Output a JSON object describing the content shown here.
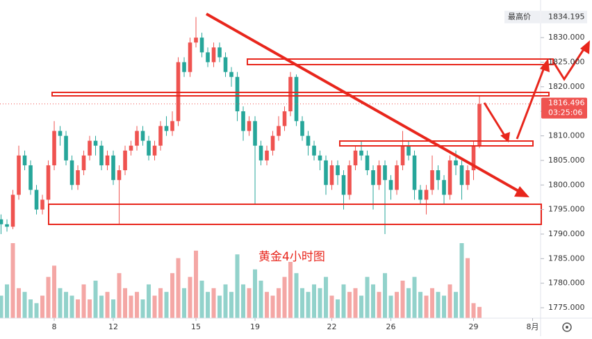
{
  "chart_data": {
    "type": "candlestick",
    "annotation": "黄金4小时图",
    "open": [
      1793,
      1792,
      1791.5,
      1798,
      1806,
      1804,
      1799,
      1795,
      1797,
      1804,
      1811,
      1810,
      1805,
      1800,
      1803,
      1806,
      1809,
      1808,
      1804,
      1806,
      1801,
      1803,
      1807,
      1808,
      1811,
      1809,
      1806,
      1808,
      1812,
      1811,
      1813,
      1825,
      1823,
      1829,
      1830,
      1827,
      1825,
      1828,
      1826,
      1823,
      1822,
      1815,
      1811,
      1813,
      1808,
      1805,
      1807,
      1810,
      1812,
      1815,
      1822,
      1813,
      1810,
      1808,
      1806,
      1805,
      1800,
      1804,
      1802,
      1798,
      1804,
      1807,
      1806,
      1803,
      1800,
      1804,
      1801,
      1799,
      1804,
      1808,
      1806,
      1799,
      1797,
      1799,
      1803,
      1801,
      1798,
      1805,
      1804,
      1800,
      1803,
      1808
    ],
    "high": [
      1794,
      1793,
      1799,
      1808,
      1807,
      1805,
      1800,
      1798,
      1805,
      1813,
      1812,
      1811,
      1806,
      1804,
      1807,
      1810,
      1810,
      1809,
      1807,
      1807,
      1804,
      1808,
      1809,
      1812,
      1812,
      1810,
      1809,
      1813,
      1814,
      1815,
      1826,
      1826,
      1830,
      1834.195,
      1831,
      1828,
      1829,
      1829,
      1827,
      1824,
      1823,
      1816,
      1814,
      1814,
      1809,
      1808,
      1811,
      1814,
      1816,
      1823,
      1822.5,
      1814,
      1811,
      1809,
      1807,
      1806,
      1805,
      1805,
      1803,
      1805,
      1808,
      1809,
      1807,
      1804,
      1805,
      1805,
      1802,
      1805,
      1811,
      1809,
      1807,
      1800,
      1800,
      1806,
      1804,
      1802,
      1806,
      1807,
      1805,
      1804,
      1809,
      1818
    ],
    "low": [
      1790,
      1790.5,
      1791,
      1797,
      1803,
      1798,
      1794,
      1794,
      1796,
      1803,
      1808,
      1804,
      1799,
      1799,
      1802,
      1805,
      1806,
      1803,
      1803,
      1800,
      1792,
      1802,
      1806,
      1807,
      1808,
      1805,
      1805,
      1807,
      1810,
      1810,
      1812,
      1822,
      1822,
      1828,
      1826,
      1824,
      1824,
      1825,
      1822,
      1820,
      1813,
      1809,
      1810,
      1796,
      1804,
      1804,
      1806,
      1809,
      1811,
      1814,
      1812,
      1809,
      1806,
      1805,
      1803,
      1798,
      1799,
      1800,
      1795,
      1797,
      1803,
      1805,
      1802,
      1795,
      1799,
      1790,
      1797,
      1798,
      1803,
      1805,
      1797,
      1796,
      1794,
      1798,
      1799,
      1796,
      1797,
      1802,
      1797,
      1799,
      1801,
      1807.5
    ],
    "close": [
      1792,
      1791.5,
      1798,
      1806,
      1804,
      1799,
      1795,
      1797,
      1804,
      1811,
      1810,
      1805,
      1800,
      1803,
      1806,
      1809,
      1808,
      1804,
      1806,
      1801,
      1803,
      1807,
      1808,
      1811,
      1809,
      1806,
      1808,
      1812,
      1811,
      1813,
      1825,
      1823,
      1829,
      1830,
      1827,
      1825,
      1828,
      1826,
      1823,
      1822,
      1815,
      1811,
      1813,
      1808,
      1805,
      1807,
      1810,
      1812,
      1815,
      1822,
      1813,
      1810,
      1808,
      1806,
      1805,
      1800,
      1804,
      1802,
      1798,
      1804,
      1807,
      1806,
      1803,
      1800,
      1804,
      1801,
      1799,
      1804,
      1808,
      1806,
      1799,
      1797,
      1799,
      1803,
      1801,
      1798,
      1805,
      1804,
      1800,
      1803,
      1808,
      1816.496
    ],
    "volumes": [
      30,
      45,
      100,
      40,
      35,
      25,
      20,
      30,
      55,
      70,
      40,
      35,
      30,
      25,
      45,
      25,
      50,
      30,
      35,
      25,
      60,
      40,
      30,
      35,
      25,
      45,
      30,
      40,
      35,
      60,
      80,
      40,
      55,
      90,
      50,
      35,
      40,
      30,
      45,
      35,
      85,
      45,
      40,
      65,
      50,
      35,
      30,
      40,
      55,
      75,
      60,
      40,
      35,
      45,
      40,
      55,
      30,
      25,
      45,
      35,
      40,
      30,
      55,
      45,
      35,
      60,
      30,
      35,
      50,
      40,
      55,
      35,
      30,
      40,
      35,
      30,
      45,
      35,
      100,
      80,
      20,
      15
    ],
    "up_color": "#ef5350",
    "down_color": "#26a69a",
    "up_volume_color": "#f4a7a5",
    "down_volume_color": "#92d2cb",
    "xlim": [
      -0.18,
      91.35
    ],
    "xticks": [
      {
        "value": 9,
        "label": "8"
      },
      {
        "value": 19,
        "label": "12"
      },
      {
        "value": 33,
        "label": "15"
      },
      {
        "value": 43,
        "label": "19"
      },
      {
        "value": 56,
        "label": "22"
      },
      {
        "value": 66,
        "label": "26"
      },
      {
        "value": 80,
        "label": "29"
      },
      {
        "value": 90,
        "label": "8月"
      }
    ],
    "ylim": [
      1772.88,
      1837.66
    ],
    "yticks": [
      {
        "value": 1775,
        "label": "1775.000"
      },
      {
        "value": 1780,
        "label": "1780.000"
      },
      {
        "value": 1785,
        "label": "1785.000"
      },
      {
        "value": 1790,
        "label": "1790.000"
      },
      {
        "value": 1795,
        "label": "1795.000"
      },
      {
        "value": 1800,
        "label": "1800.000"
      },
      {
        "value": 1805,
        "label": "1805.000"
      },
      {
        "value": 1810,
        "label": "1810.000"
      },
      {
        "value": 1815,
        "label": "1815.000"
      },
      {
        "value": 1820,
        "label": "1820.000"
      },
      {
        "value": 1825,
        "label": "1825.000"
      },
      {
        "value": 1830,
        "label": "1830.000"
      }
    ],
    "high_label": "最高价",
    "high_value": 1834.195,
    "last_price": 1816.496,
    "countdown": "03:25:06"
  }
}
